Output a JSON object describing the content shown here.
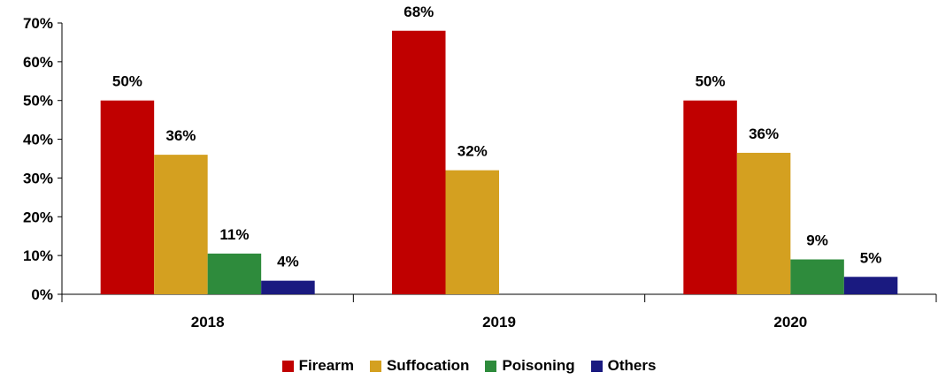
{
  "chart_data": {
    "type": "bar",
    "categories": [
      "2018",
      "2019",
      "2020"
    ],
    "series": [
      {
        "name": "Firearm",
        "color": "#C00000",
        "values": [
          50,
          68,
          50
        ],
        "labels": [
          "50%",
          "68%",
          "50%"
        ]
      },
      {
        "name": "Suffocation",
        "color": "#D4A020",
        "values": [
          36,
          32,
          36
        ],
        "labels": [
          "36%",
          "32%",
          "36%"
        ]
      },
      {
        "name": "Poisoning",
        "color": "#2E8B3C",
        "values": [
          11,
          null,
          9
        ],
        "labels": [
          "11%",
          "",
          "9%"
        ]
      },
      {
        "name": "Others",
        "color": "#1A1A80",
        "values": [
          4,
          null,
          5
        ],
        "labels": [
          "4%",
          "",
          "5%"
        ]
      }
    ],
    "plotted_values": [
      [
        50,
        68,
        50
      ],
      [
        36,
        32,
        36.5
      ],
      [
        10.5,
        null,
        9
      ],
      [
        3.5,
        null,
        4.5
      ]
    ],
    "ylim": [
      0,
      70
    ],
    "yticks": [
      "0%",
      "10%",
      "20%",
      "30%",
      "40%",
      "50%",
      "60%",
      "70%"
    ],
    "grid": false,
    "legend_position": "bottom"
  }
}
